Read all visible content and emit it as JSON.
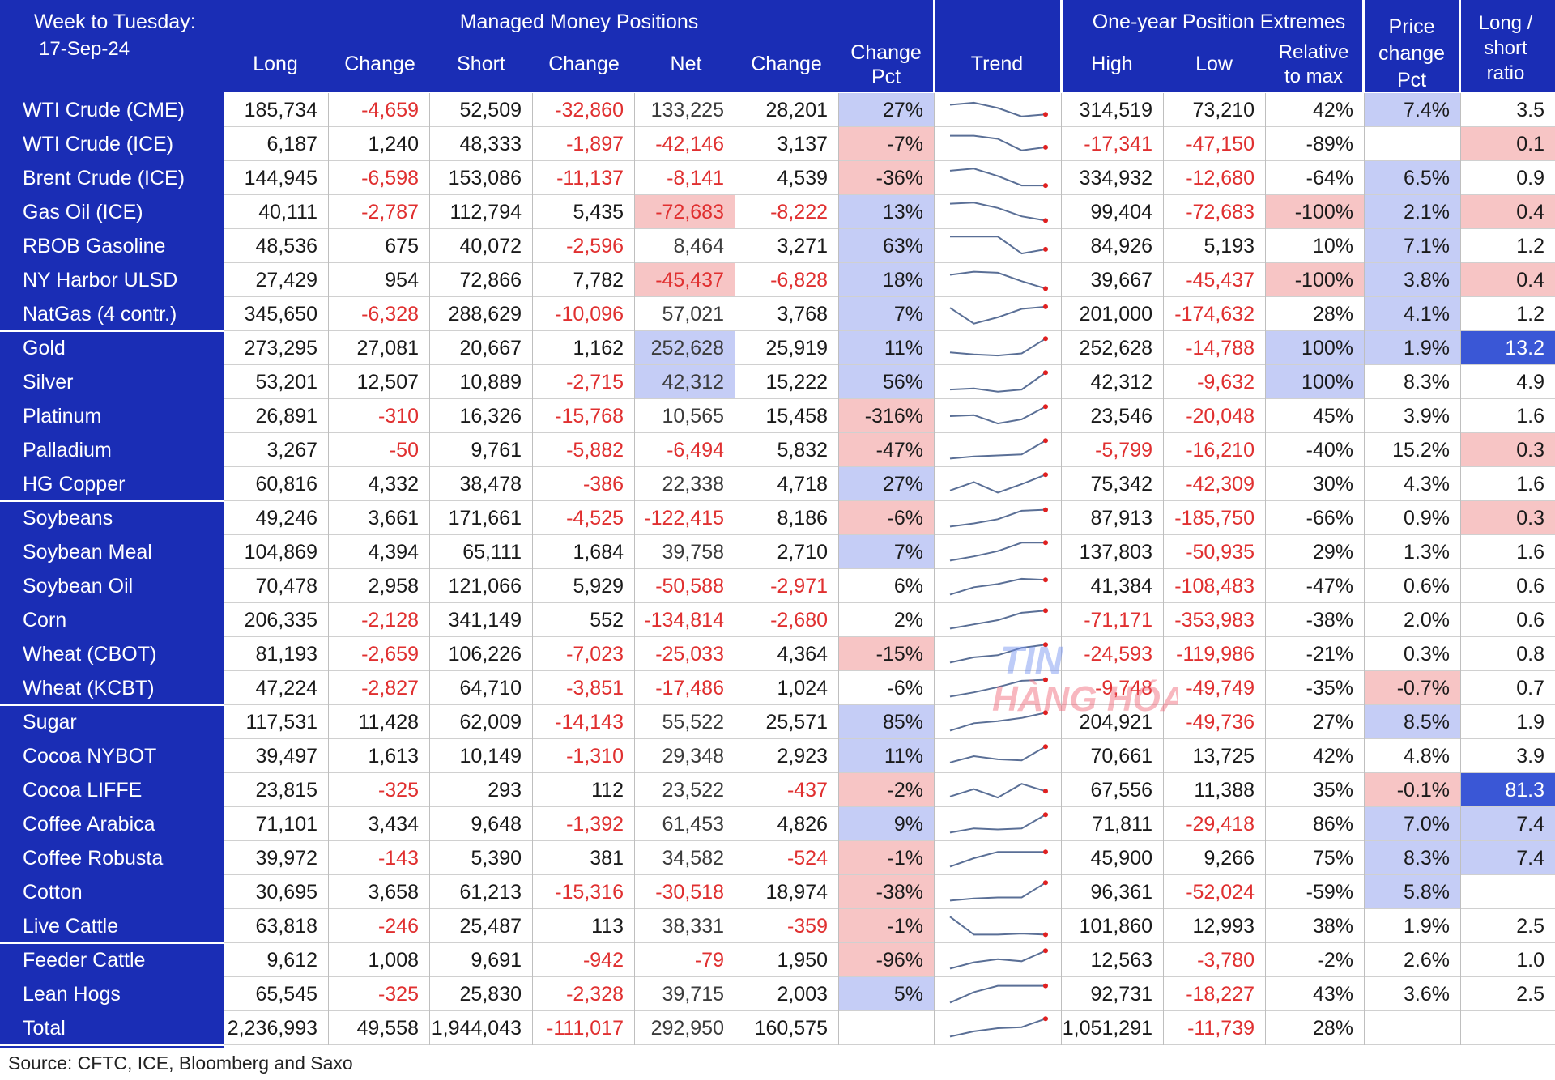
{
  "header": {
    "week_label": "Week to Tuesday:",
    "date": "17-Sep-24",
    "group_managed": "Managed Money Positions",
    "group_extremes": "One-year Position Extremes",
    "col_long": "Long",
    "col_change1": "Change",
    "col_short": "Short",
    "col_change2": "Change",
    "col_net": "Net",
    "col_change3": "Change",
    "col_changepct_1": "Change",
    "col_changepct_2": "Pct",
    "col_trend": "Trend",
    "col_high": "High",
    "col_low": "Low",
    "col_rel_1": "Relative",
    "col_rel_2": "to max",
    "col_price_1": "Price",
    "col_price_2": "change",
    "col_price_3": "Pct",
    "col_ratio_1": "Long /",
    "col_ratio_2": "short",
    "col_ratio_3": "ratio"
  },
  "footer": {
    "source": "Source: CFTC, ICE, Bloomberg and Saxo"
  },
  "watermark": {
    "line1": "TIN",
    "line2": "HÀNG HÓA"
  },
  "colors": {
    "header_blue": "#1a2db5",
    "positive_highlight": "#c5cdf6",
    "negative_highlight": "#f7c5c5",
    "strong_blue": "#3a57d6",
    "negative_text": "#e03030",
    "trend_line": "#5a6f96",
    "trend_dot": "#e02020"
  },
  "chart_data": {
    "type": "table",
    "columns": [
      "Long",
      "Change",
      "Short",
      "Change",
      "Net",
      "Change",
      "Change Pct",
      "Trend",
      "High",
      "Low",
      "Relative to max",
      "Price change Pct",
      "Long / short ratio"
    ],
    "rows": [
      {
        "name": "WTI Crude (CME)",
        "long": "185,734",
        "ch1": "-4,659",
        "short": "52,509",
        "ch2": "-32,860",
        "net": "133,225",
        "ch3": "28,201",
        "chpct": "27%",
        "high": "314,519",
        "low": "73,210",
        "rel": "42%",
        "price": "7.4%",
        "ratio": "3.5",
        "chpct_bg": "pos",
        "price_bg": "pos",
        "ratio_bg": "",
        "net_bg": "",
        "rel_bg": "",
        "trend": [
          0.75,
          0.85,
          0.6,
          0.2,
          0.3
        ]
      },
      {
        "name": "WTI Crude (ICE)",
        "long": "6,187",
        "ch1": "1,240",
        "short": "48,333",
        "ch2": "-1,897",
        "net": "-42,146",
        "ch3": "3,137",
        "chpct": "-7%",
        "high": "-17,341",
        "low": "-47,150",
        "rel": "-89%",
        "price": "",
        "ratio": "0.1",
        "chpct_bg": "neg",
        "price_bg": "",
        "ratio_bg": "neg",
        "net_bg": "",
        "rel_bg": "",
        "trend": [
          0.9,
          0.9,
          0.75,
          0.2,
          0.35
        ]
      },
      {
        "name": "Brent Crude (ICE)",
        "long": "144,945",
        "ch1": "-6,598",
        "short": "153,086",
        "ch2": "-11,137",
        "net": "-8,141",
        "ch3": "4,539",
        "chpct": "-36%",
        "high": "334,932",
        "low": "-12,680",
        "rel": "-64%",
        "price": "6.5%",
        "ratio": "0.9",
        "chpct_bg": "neg",
        "price_bg": "pos",
        "ratio_bg": "",
        "net_bg": "",
        "rel_bg": "",
        "trend": [
          0.85,
          0.95,
          0.6,
          0.15,
          0.15
        ]
      },
      {
        "name": "Gas Oil (ICE)",
        "long": "40,111",
        "ch1": "-2,787",
        "short": "112,794",
        "ch2": "5,435",
        "net": "-72,683",
        "ch3": "-8,222",
        "chpct": "13%",
        "high": "99,404",
        "low": "-72,683",
        "rel": "-100%",
        "price": "2.1%",
        "ratio": "0.4",
        "chpct_bg": "pos",
        "price_bg": "pos",
        "ratio_bg": "neg",
        "net_bg": "neg",
        "rel_bg": "neg",
        "trend": [
          0.9,
          0.95,
          0.7,
          0.3,
          0.1
        ]
      },
      {
        "name": "RBOB Gasoline",
        "long": "48,536",
        "ch1": "675",
        "short": "40,072",
        "ch2": "-2,596",
        "net": "8,464",
        "ch3": "3,271",
        "chpct": "63%",
        "high": "84,926",
        "low": "5,193",
        "rel": "10%",
        "price": "7.1%",
        "ratio": "1.2",
        "chpct_bg": "pos",
        "price_bg": "pos",
        "ratio_bg": "",
        "net_bg": "",
        "rel_bg": "",
        "trend": [
          0.95,
          0.95,
          0.95,
          0.15,
          0.35
        ]
      },
      {
        "name": "NY Harbor ULSD",
        "long": "27,429",
        "ch1": "954",
        "short": "72,866",
        "ch2": "7,782",
        "net": "-45,437",
        "ch3": "-6,828",
        "chpct": "18%",
        "high": "39,667",
        "low": "-45,437",
        "rel": "-100%",
        "price": "3.8%",
        "ratio": "0.4",
        "chpct_bg": "pos",
        "price_bg": "pos",
        "ratio_bg": "neg",
        "net_bg": "neg",
        "rel_bg": "neg",
        "trend": [
          0.75,
          0.9,
          0.85,
          0.45,
          0.1
        ]
      },
      {
        "name": "NatGas (4 contr.)",
        "long": "345,650",
        "ch1": "-6,328",
        "short": "288,629",
        "ch2": "-10,096",
        "net": "57,021",
        "ch3": "3,768",
        "chpct": "7%",
        "high": "201,000",
        "low": "-174,632",
        "rel": "28%",
        "price": "4.1%",
        "ratio": "1.2",
        "chpct_bg": "pos",
        "price_bg": "pos",
        "ratio_bg": "",
        "net_bg": "",
        "rel_bg": "",
        "trend": [
          0.8,
          0.05,
          0.35,
          0.75,
          0.85
        ]
      },
      {
        "name": "Gold",
        "long": "273,295",
        "ch1": "27,081",
        "short": "20,667",
        "ch2": "1,162",
        "net": "252,628",
        "ch3": "25,919",
        "chpct": "11%",
        "high": "252,628",
        "low": "-14,788",
        "rel": "100%",
        "price": "1.9%",
        "ratio": "13.2",
        "chpct_bg": "pos",
        "price_bg": "pos",
        "ratio_bg": "strong",
        "net_bg": "pos",
        "rel_bg": "pos",
        "trend": [
          0.3,
          0.2,
          0.15,
          0.25,
          0.95
        ]
      },
      {
        "name": "Silver",
        "long": "53,201",
        "ch1": "12,507",
        "short": "10,889",
        "ch2": "-2,715",
        "net": "42,312",
        "ch3": "15,222",
        "chpct": "56%",
        "high": "42,312",
        "low": "-9,632",
        "rel": "100%",
        "price": "8.3%",
        "ratio": "4.9",
        "chpct_bg": "pos",
        "price_bg": "",
        "ratio_bg": "",
        "net_bg": "pos",
        "rel_bg": "pos",
        "trend": [
          0.15,
          0.2,
          0.05,
          0.15,
          0.95
        ]
      },
      {
        "name": "Platinum",
        "long": "26,891",
        "ch1": "-310",
        "short": "16,326",
        "ch2": "-15,768",
        "net": "10,565",
        "ch3": "15,458",
        "chpct": "-316%",
        "high": "23,546",
        "low": "-20,048",
        "rel": "45%",
        "price": "3.9%",
        "ratio": "1.6",
        "chpct_bg": "neg",
        "price_bg": "",
        "ratio_bg": "",
        "net_bg": "",
        "rel_bg": "",
        "trend": [
          0.5,
          0.55,
          0.15,
          0.35,
          0.95
        ]
      },
      {
        "name": "Palladium",
        "long": "3,267",
        "ch1": "-50",
        "short": "9,761",
        "ch2": "-5,882",
        "net": "-6,494",
        "ch3": "5,832",
        "chpct": "-47%",
        "high": "-5,799",
        "low": "-16,210",
        "rel": "-40%",
        "price": "15.2%",
        "ratio": "0.3",
        "chpct_bg": "neg",
        "price_bg": "",
        "ratio_bg": "neg",
        "net_bg": "",
        "rel_bg": "",
        "trend": [
          0.1,
          0.2,
          0.25,
          0.3,
          0.95
        ]
      },
      {
        "name": "HG Copper",
        "long": "60,816",
        "ch1": "4,332",
        "short": "38,478",
        "ch2": "-386",
        "net": "22,338",
        "ch3": "4,718",
        "chpct": "27%",
        "high": "75,342",
        "low": "-42,309",
        "rel": "30%",
        "price": "4.3%",
        "ratio": "1.6",
        "chpct_bg": "pos",
        "price_bg": "",
        "ratio_bg": "",
        "net_bg": "",
        "rel_bg": "",
        "trend": [
          0.2,
          0.6,
          0.1,
          0.5,
          0.95
        ]
      },
      {
        "name": "Soybeans",
        "long": "49,246",
        "ch1": "3,661",
        "short": "171,661",
        "ch2": "-4,525",
        "net": "-122,415",
        "ch3": "8,186",
        "chpct": "-6%",
        "high": "87,913",
        "low": "-185,750",
        "rel": "-66%",
        "price": "0.9%",
        "ratio": "0.3",
        "chpct_bg": "neg",
        "price_bg": "",
        "ratio_bg": "neg",
        "net_bg": "",
        "rel_bg": "",
        "trend": [
          0.1,
          0.25,
          0.45,
          0.85,
          0.9
        ]
      },
      {
        "name": "Soybean Meal",
        "long": "104,869",
        "ch1": "4,394",
        "short": "65,111",
        "ch2": "1,684",
        "net": "39,758",
        "ch3": "2,710",
        "chpct": "7%",
        "high": "137,803",
        "low": "-50,935",
        "rel": "29%",
        "price": "1.3%",
        "ratio": "1.6",
        "chpct_bg": "pos",
        "price_bg": "",
        "ratio_bg": "",
        "net_bg": "",
        "rel_bg": "",
        "trend": [
          0.1,
          0.3,
          0.55,
          0.95,
          0.95
        ]
      },
      {
        "name": "Soybean Oil",
        "long": "70,478",
        "ch1": "2,958",
        "short": "121,066",
        "ch2": "5,929",
        "net": "-50,588",
        "ch3": "-2,971",
        "chpct": "6%",
        "high": "41,384",
        "low": "-108,483",
        "rel": "-47%",
        "price": "0.6%",
        "ratio": "0.6",
        "chpct_bg": "",
        "price_bg": "",
        "ratio_bg": "",
        "net_bg": "",
        "rel_bg": "",
        "trend": [
          0.1,
          0.45,
          0.6,
          0.85,
          0.8
        ]
      },
      {
        "name": "Corn",
        "long": "206,335",
        "ch1": "-2,128",
        "short": "341,149",
        "ch2": "552",
        "net": "-134,814",
        "ch3": "-2,680",
        "chpct": "2%",
        "high": "-71,171",
        "low": "-353,983",
        "rel": "-38%",
        "price": "2.0%",
        "ratio": "0.6",
        "chpct_bg": "",
        "price_bg": "",
        "ratio_bg": "",
        "net_bg": "",
        "rel_bg": "",
        "trend": [
          0.1,
          0.3,
          0.5,
          0.85,
          0.95
        ]
      },
      {
        "name": "Wheat (CBOT)",
        "long": "81,193",
        "ch1": "-2,659",
        "short": "106,226",
        "ch2": "-7,023",
        "net": "-25,033",
        "ch3": "4,364",
        "chpct": "-15%",
        "high": "-24,593",
        "low": "-119,986",
        "rel": "-21%",
        "price": "0.3%",
        "ratio": "0.8",
        "chpct_bg": "neg",
        "price_bg": "",
        "ratio_bg": "",
        "net_bg": "",
        "rel_bg": "",
        "trend": [
          0.1,
          0.35,
          0.45,
          0.8,
          0.95
        ]
      },
      {
        "name": "Wheat (KCBT)",
        "long": "47,224",
        "ch1": "-2,827",
        "short": "64,710",
        "ch2": "-3,851",
        "net": "-17,486",
        "ch3": "1,024",
        "chpct": "-6%",
        "high": "-9,748",
        "low": "-49,749",
        "rel": "-35%",
        "price": "-0.7%",
        "ratio": "0.7",
        "chpct_bg": "",
        "price_bg": "neg",
        "ratio_bg": "",
        "net_bg": "",
        "rel_bg": "",
        "trend": [
          0.1,
          0.3,
          0.55,
          0.85,
          0.9
        ]
      },
      {
        "name": "Sugar",
        "long": "117,531",
        "ch1": "11,428",
        "short": "62,009",
        "ch2": "-14,143",
        "net": "55,522",
        "ch3": "25,571",
        "chpct": "85%",
        "high": "204,921",
        "low": "-49,736",
        "rel": "27%",
        "price": "8.5%",
        "ratio": "1.9",
        "chpct_bg": "pos",
        "price_bg": "pos",
        "ratio_bg": "",
        "net_bg": "",
        "rel_bg": "",
        "trend": [
          0.1,
          0.45,
          0.55,
          0.7,
          0.95
        ]
      },
      {
        "name": "Cocoa NYBOT",
        "long": "39,497",
        "ch1": "1,613",
        "short": "10,149",
        "ch2": "-1,310",
        "net": "29,348",
        "ch3": "2,923",
        "chpct": "11%",
        "high": "70,661",
        "low": "13,725",
        "rel": "42%",
        "price": "4.8%",
        "ratio": "3.9",
        "chpct_bg": "pos",
        "price_bg": "",
        "ratio_bg": "",
        "net_bg": "",
        "rel_bg": "",
        "trend": [
          0.2,
          0.5,
          0.35,
          0.3,
          0.95
        ]
      },
      {
        "name": "Cocoa LIFFE",
        "long": "23,815",
        "ch1": "-325",
        "short": "293",
        "ch2": "112",
        "net": "23,522",
        "ch3": "-437",
        "chpct": "-2%",
        "high": "67,556",
        "low": "11,388",
        "rel": "35%",
        "price": "-0.1%",
        "ratio": "81.3",
        "chpct_bg": "neg",
        "price_bg": "neg",
        "ratio_bg": "strong",
        "net_bg": "",
        "rel_bg": "",
        "trend": [
          0.2,
          0.55,
          0.15,
          0.8,
          0.45
        ]
      },
      {
        "name": "Coffee Arabica",
        "long": "71,101",
        "ch1": "3,434",
        "short": "9,648",
        "ch2": "-1,392",
        "net": "61,453",
        "ch3": "4,826",
        "chpct": "9%",
        "high": "71,811",
        "low": "-29,418",
        "rel": "86%",
        "price": "7.0%",
        "ratio": "7.4",
        "chpct_bg": "pos",
        "price_bg": "pos",
        "ratio_bg": "pos",
        "net_bg": "",
        "rel_bg": "",
        "trend": [
          0.1,
          0.3,
          0.25,
          0.3,
          0.95
        ]
      },
      {
        "name": "Coffee Robusta",
        "long": "39,972",
        "ch1": "-143",
        "short": "5,390",
        "ch2": "381",
        "net": "34,582",
        "ch3": "-524",
        "chpct": "-1%",
        "high": "45,900",
        "low": "9,266",
        "rel": "75%",
        "price": "8.3%",
        "ratio": "7.4",
        "chpct_bg": "neg",
        "price_bg": "pos",
        "ratio_bg": "pos",
        "net_bg": "",
        "rel_bg": "",
        "trend": [
          0.1,
          0.5,
          0.8,
          0.8,
          0.8
        ]
      },
      {
        "name": "Cotton",
        "long": "30,695",
        "ch1": "3,658",
        "short": "61,213",
        "ch2": "-15,316",
        "net": "-30,518",
        "ch3": "18,974",
        "chpct": "-38%",
        "high": "96,361",
        "low": "-52,024",
        "rel": "-59%",
        "price": "5.8%",
        "ratio": "",
        "chpct_bg": "neg",
        "price_bg": "pos",
        "ratio_bg": "",
        "net_bg": "",
        "rel_bg": "",
        "trend": [
          0.1,
          0.2,
          0.25,
          0.25,
          0.95
        ]
      },
      {
        "name": "Live Cattle",
        "long": "63,818",
        "ch1": "-246",
        "short": "25,487",
        "ch2": "113",
        "net": "38,331",
        "ch3": "-359",
        "chpct": "-1%",
        "high": "101,860",
        "low": "12,993",
        "rel": "38%",
        "price": "1.9%",
        "ratio": "2.5",
        "chpct_bg": "neg",
        "price_bg": "",
        "ratio_bg": "",
        "net_bg": "",
        "rel_bg": "",
        "trend": [
          0.95,
          0.1,
          0.1,
          0.15,
          0.1
        ]
      },
      {
        "name": "Feeder Cattle",
        "long": "9,612",
        "ch1": "1,008",
        "short": "9,691",
        "ch2": "-942",
        "net": "-79",
        "ch3": "1,950",
        "chpct": "-96%",
        "high": "12,563",
        "low": "-3,780",
        "rel": "-2%",
        "price": "2.6%",
        "ratio": "1.0",
        "chpct_bg": "neg",
        "price_bg": "",
        "ratio_bg": "",
        "net_bg": "",
        "rel_bg": "",
        "trend": [
          0.1,
          0.4,
          0.55,
          0.45,
          0.95
        ]
      },
      {
        "name": "Lean Hogs",
        "long": "65,545",
        "ch1": "-325",
        "short": "25,830",
        "ch2": "-2,328",
        "net": "39,715",
        "ch3": "2,003",
        "chpct": "5%",
        "high": "92,731",
        "low": "-18,227",
        "rel": "43%",
        "price": "3.6%",
        "ratio": "2.5",
        "chpct_bg": "pos",
        "price_bg": "",
        "ratio_bg": "",
        "net_bg": "",
        "rel_bg": "",
        "trend": [
          0.1,
          0.6,
          0.9,
          0.9,
          0.9
        ]
      },
      {
        "name": "Total",
        "long": "2,236,993",
        "ch1": "49,558",
        "short": "1,944,043",
        "ch2": "-111,017",
        "net": "292,950",
        "ch3": "160,575",
        "chpct": "",
        "high": "1,051,291",
        "low": "-11,739",
        "rel": "28%",
        "price": "",
        "ratio": "",
        "chpct_bg": "",
        "price_bg": "",
        "ratio_bg": "",
        "net_bg": "",
        "rel_bg": "",
        "trend": [
          0.1,
          0.35,
          0.5,
          0.55,
          0.95
        ]
      }
    ]
  }
}
